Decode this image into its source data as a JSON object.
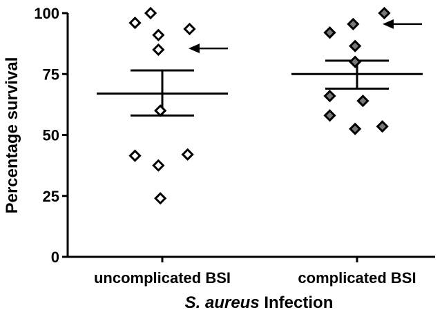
{
  "chart_data": {
    "type": "scatter",
    "title": "",
    "ylabel": "Percentage survival",
    "xlabel_italic": "S. aureus",
    "xlabel_rest": " Infection",
    "ylim": [
      0,
      100
    ],
    "yticks": [
      0,
      25,
      50,
      75,
      100
    ],
    "grid": false,
    "categories": [
      "uncomplicated BSI",
      "complicated BSI"
    ],
    "series": [
      {
        "category": "uncomplicated BSI",
        "marker": "open-diamond",
        "color": "#000000",
        "fill": "#ffffff",
        "points": [
          {
            "offset": -0.06,
            "y": 100
          },
          {
            "offset": -0.14,
            "y": 96
          },
          {
            "offset": 0.14,
            "y": 93.5
          },
          {
            "offset": -0.02,
            "y": 91
          },
          {
            "offset": -0.02,
            "y": 85
          },
          {
            "offset": -0.01,
            "y": 60
          },
          {
            "offset": 0.13,
            "y": 42
          },
          {
            "offset": -0.14,
            "y": 41.5
          },
          {
            "offset": -0.02,
            "y": 37.5
          },
          {
            "offset": -0.01,
            "y": 24
          }
        ],
        "mean": 67,
        "sem_low": 58,
        "sem_high": 76.5,
        "arrow_at": 85.5
      },
      {
        "category": "complicated BSI",
        "marker": "filled-diamond",
        "color": "#000000",
        "fill": "#777777",
        "points": [
          {
            "offset": 0.14,
            "y": 100
          },
          {
            "offset": -0.02,
            "y": 95.5
          },
          {
            "offset": -0.14,
            "y": 92
          },
          {
            "offset": -0.01,
            "y": 86.5
          },
          {
            "offset": -0.01,
            "y": 80
          },
          {
            "offset": -0.14,
            "y": 66
          },
          {
            "offset": 0.03,
            "y": 64
          },
          {
            "offset": -0.14,
            "y": 58
          },
          {
            "offset": 0.13,
            "y": 53.5
          },
          {
            "offset": -0.01,
            "y": 52.5
          }
        ],
        "mean": 75,
        "sem_low": 69,
        "sem_high": 80.5,
        "arrow_at": 95.5
      }
    ]
  }
}
